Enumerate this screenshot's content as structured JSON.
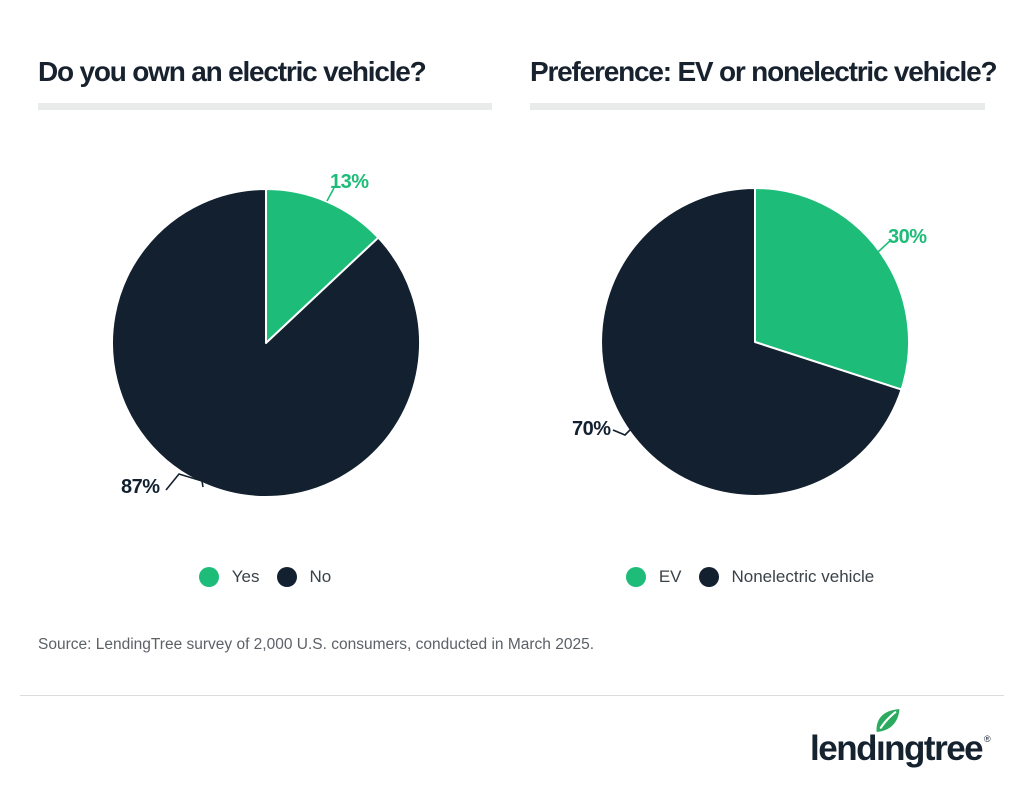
{
  "chart_data": [
    {
      "type": "pie",
      "title": "Do you own an electric vehicle?",
      "categories": [
        "Yes",
        "No"
      ],
      "values": [
        13,
        87
      ],
      "labels": [
        "13%",
        "87%"
      ],
      "colors": [
        "#1DBC78",
        "#12202F"
      ],
      "start_angle_deg": 0,
      "direction": "clockwise",
      "legend_position": "bottom"
    },
    {
      "type": "pie",
      "title": "Preference: EV or nonelectric vehicle?",
      "categories": [
        "EV",
        "Nonelectric vehicle"
      ],
      "values": [
        30,
        70
      ],
      "labels": [
        "30%",
        "70%"
      ],
      "colors": [
        "#1DBC78",
        "#12202F"
      ],
      "start_angle_deg": 0,
      "direction": "clockwise",
      "legend_position": "bottom"
    }
  ],
  "source_note": "Source: LendingTree survey of 2,000 U.S. consumers, conducted in March 2025.",
  "logo": {
    "wordmark": "lendingtree",
    "registered": "®",
    "text_color": "#15222F",
    "leaf_color": "#2BAB5F"
  },
  "theme": {
    "background": "#FFFFFF",
    "title_color": "#17222E",
    "title_divider_color": "#E9EAEA",
    "footer_rule_color": "#D9DBDC",
    "legend_text_color": "#3A4249",
    "source_text_color": "#5C6166",
    "accent_green": "#1DBC78",
    "brand_navy": "#12202F"
  }
}
